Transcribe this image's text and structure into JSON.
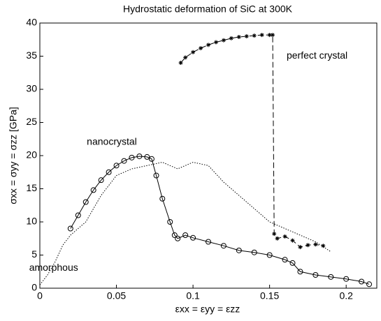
{
  "chart_data": {
    "type": "line",
    "title": "Hydrostatic deformation of SiC at 300K",
    "xlabel": "εxx = εyy = εzz",
    "ylabel": "σxx = σyy = σzz [GPa]",
    "xlim": [
      0,
      0.22
    ],
    "ylim": [
      0,
      40
    ],
    "xticks": [
      0,
      0.05,
      0.1,
      0.15,
      0.2
    ],
    "yticks": [
      0,
      5,
      10,
      15,
      20,
      25,
      30,
      35,
      40
    ],
    "annotations": [
      {
        "text": "perfect crystal",
        "x": 0.181,
        "y": 35
      },
      {
        "text": "nanocrystal",
        "x": 0.047,
        "y": 22
      },
      {
        "text": "amorphous",
        "x": 0.009,
        "y": 3
      }
    ],
    "series": [
      {
        "name": "perfect crystal",
        "color": "#000000",
        "marker": "asterisk",
        "line": "dashed",
        "x": [
          0.092,
          0.095,
          0.1,
          0.105,
          0.11,
          0.115,
          0.12,
          0.125,
          0.13,
          0.135,
          0.14,
          0.145,
          0.15,
          0.152,
          0.153,
          0.155,
          0.16,
          0.165,
          0.17,
          0.175,
          0.18,
          0.185
        ],
        "values": [
          34,
          34.8,
          35.6,
          36.2,
          36.7,
          37.1,
          37.4,
          37.7,
          37.9,
          38,
          38.1,
          38.2,
          38.2,
          38.2,
          8.2,
          7.5,
          7.8,
          7.2,
          6.2,
          6.5,
          6.6,
          6.4
        ]
      },
      {
        "name": "nanocrystal",
        "color": "#000000",
        "marker": "circle",
        "line": "solid",
        "x": [
          0.02,
          0.025,
          0.03,
          0.035,
          0.04,
          0.045,
          0.05,
          0.055,
          0.06,
          0.065,
          0.07,
          0.073,
          0.076,
          0.08,
          0.085,
          0.088,
          0.09,
          0.095,
          0.1,
          0.11,
          0.12,
          0.13,
          0.14,
          0.15,
          0.16,
          0.165,
          0.17,
          0.18,
          0.19,
          0.2,
          0.21,
          0.215
        ],
        "values": [
          9,
          11,
          13,
          14.8,
          16.3,
          17.5,
          18.5,
          19.2,
          19.7,
          19.9,
          19.8,
          19.5,
          17,
          13.5,
          10,
          8,
          7.5,
          8,
          7.6,
          7,
          6.4,
          5.7,
          5.4,
          5,
          4.3,
          3.8,
          2.5,
          2,
          1.7,
          1.4,
          1,
          0.6
        ]
      },
      {
        "name": "amorphous",
        "color": "#000000",
        "marker": "none",
        "line": "dotted",
        "x": [
          0,
          0.005,
          0.01,
          0.015,
          0.02,
          0.03,
          0.04,
          0.05,
          0.06,
          0.07,
          0.08,
          0.09,
          0.1,
          0.11,
          0.12,
          0.13,
          0.14,
          0.15,
          0.16,
          0.17,
          0.18,
          0.19
        ],
        "values": [
          0.5,
          2,
          4,
          6.5,
          8,
          10,
          14,
          17,
          18,
          18.5,
          19,
          18,
          19,
          18.5,
          16,
          14,
          12,
          10,
          9,
          8,
          7,
          5.5
        ]
      }
    ]
  }
}
